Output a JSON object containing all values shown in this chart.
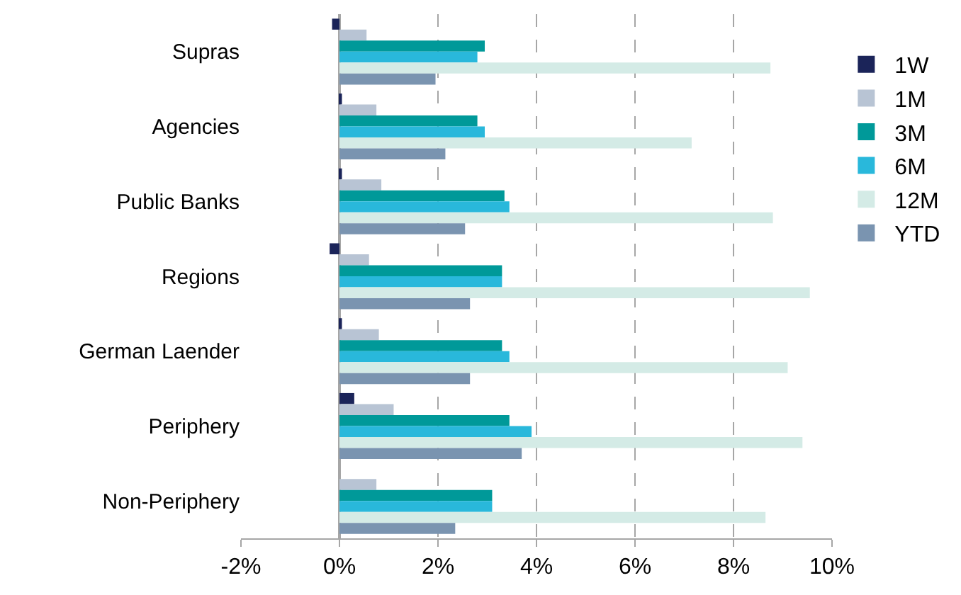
{
  "chart_data": {
    "type": "bar",
    "orientation": "horizontal",
    "categories": [
      "Supras",
      "Agencies",
      "Public Banks",
      "Regions",
      "German Laender",
      "Periphery",
      "Non-Periphery"
    ],
    "series": [
      {
        "name": "1W",
        "color": "#1b2459",
        "values": [
          -0.15,
          0.05,
          0.05,
          -0.2,
          0.05,
          0.3,
          0
        ]
      },
      {
        "name": "1M",
        "color": "#b8c4d4",
        "values": [
          0.55,
          0.75,
          0.85,
          0.6,
          0.8,
          1.1,
          0.75
        ]
      },
      {
        "name": "3M",
        "color": "#009999",
        "values": [
          2.95,
          2.8,
          3.35,
          3.3,
          3.3,
          3.45,
          3.1
        ]
      },
      {
        "name": "6M",
        "color": "#29b8db",
        "values": [
          2.8,
          2.95,
          3.45,
          3.3,
          3.45,
          3.9,
          3.1
        ]
      },
      {
        "name": "12M",
        "color": "#d4ebe6",
        "values": [
          8.75,
          7.15,
          8.8,
          9.55,
          9.1,
          9.4,
          8.65
        ]
      },
      {
        "name": "YTD",
        "color": "#7a94b0",
        "values": [
          1.95,
          2.15,
          2.55,
          2.65,
          2.65,
          3.7,
          2.35
        ]
      }
    ],
    "xlim": [
      -2,
      10
    ],
    "xticks": [
      {
        "value": -2,
        "label": "-2%"
      },
      {
        "value": 0,
        "label": "0%"
      },
      {
        "value": 2,
        "label": "2%"
      },
      {
        "value": 4,
        "label": "4%"
      },
      {
        "value": 6,
        "label": "6%"
      },
      {
        "value": 8,
        "label": "8%"
      },
      {
        "value": 10,
        "label": "10%"
      }
    ],
    "grid": "x",
    "legend": "right",
    "line_style": "dashed"
  }
}
